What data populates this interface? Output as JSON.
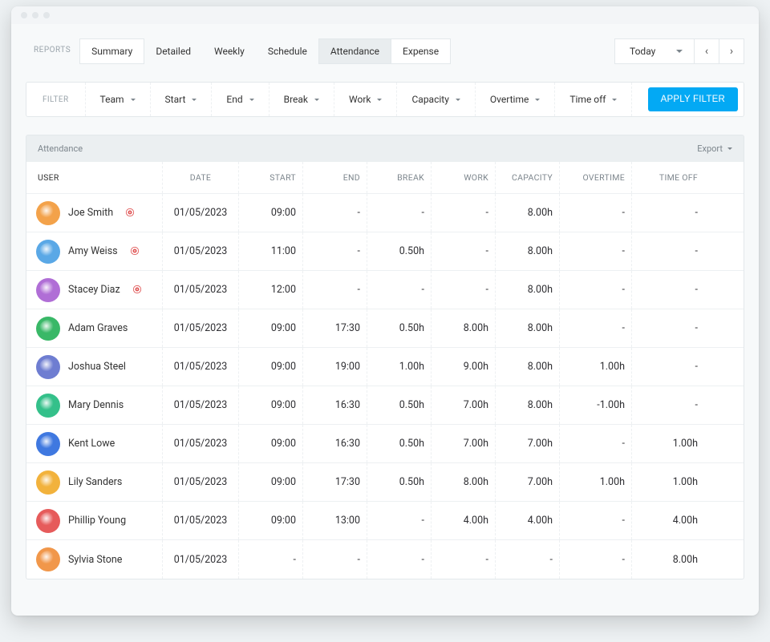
{
  "tabs": {
    "label": "REPORTS",
    "items": [
      "Summary",
      "Detailed",
      "Weekly",
      "Schedule",
      "Attendance",
      "Expense"
    ],
    "active_index": 4
  },
  "date_picker": {
    "label": "Today"
  },
  "filter": {
    "label": "FILTER",
    "items": [
      "Team",
      "Start",
      "End",
      "Break",
      "Work",
      "Capacity",
      "Overtime",
      "Time off"
    ],
    "apply_label": "APPLY FILTER"
  },
  "section": {
    "title": "Attendance",
    "export_label": "Export"
  },
  "columns": [
    "USER",
    "DATE",
    "START",
    "END",
    "BREAK",
    "WORK",
    "CAPACITY",
    "OVERTIME",
    "TIME OFF"
  ],
  "avatar_colors": [
    "#f3a24a",
    "#5aa8e6",
    "#b06ed6",
    "#39b867",
    "#6e7dd1",
    "#34c08a",
    "#3f78e0",
    "#f2b23c",
    "#e65b5b",
    "#f1974a"
  ],
  "rows": [
    {
      "name": "Joe Smith",
      "live": true,
      "date": "01/05/2023",
      "start": "09:00",
      "end": "-",
      "break": "-",
      "work": "-",
      "capacity": "8.00h",
      "overtime": "-",
      "timeoff": "-"
    },
    {
      "name": "Amy Weiss",
      "live": true,
      "date": "01/05/2023",
      "start": "11:00",
      "end": "-",
      "break": "0.50h",
      "work": "-",
      "capacity": "8.00h",
      "overtime": "-",
      "timeoff": "-"
    },
    {
      "name": "Stacey Diaz",
      "live": true,
      "date": "01/05/2023",
      "start": "12:00",
      "end": "-",
      "break": "-",
      "work": "-",
      "capacity": "8.00h",
      "overtime": "-",
      "timeoff": "-"
    },
    {
      "name": "Adam Graves",
      "live": false,
      "date": "01/05/2023",
      "start": "09:00",
      "end": "17:30",
      "break": "0.50h",
      "work": "8.00h",
      "capacity": "8.00h",
      "overtime": "-",
      "timeoff": "-"
    },
    {
      "name": "Joshua Steel",
      "live": false,
      "date": "01/05/2023",
      "start": "09:00",
      "end": "19:00",
      "break": "1.00h",
      "work": "9.00h",
      "capacity": "8.00h",
      "overtime": "1.00h",
      "timeoff": "-"
    },
    {
      "name": "Mary Dennis",
      "live": false,
      "date": "01/05/2023",
      "start": "09:00",
      "end": "16:30",
      "break": "0.50h",
      "work": "7.00h",
      "capacity": "8.00h",
      "overtime": "-1.00h",
      "timeoff": "-"
    },
    {
      "name": "Kent Lowe",
      "live": false,
      "date": "01/05/2023",
      "start": "09:00",
      "end": "16:30",
      "break": "0.50h",
      "work": "7.00h",
      "capacity": "7.00h",
      "overtime": "-",
      "timeoff": "1.00h"
    },
    {
      "name": "Lily Sanders",
      "live": false,
      "date": "01/05/2023",
      "start": "09:00",
      "end": "17:30",
      "break": "0.50h",
      "work": "8.00h",
      "capacity": "7.00h",
      "overtime": "1.00h",
      "timeoff": "1.00h"
    },
    {
      "name": "Phillip Young",
      "live": false,
      "date": "01/05/2023",
      "start": "09:00",
      "end": "13:00",
      "break": "-",
      "work": "4.00h",
      "capacity": "4.00h",
      "overtime": "-",
      "timeoff": "4.00h"
    },
    {
      "name": "Sylvia Stone",
      "live": false,
      "date": "01/05/2023",
      "start": "-",
      "end": "-",
      "break": "-",
      "work": "-",
      "capacity": "-",
      "overtime": "-",
      "timeoff": "8.00h"
    }
  ]
}
